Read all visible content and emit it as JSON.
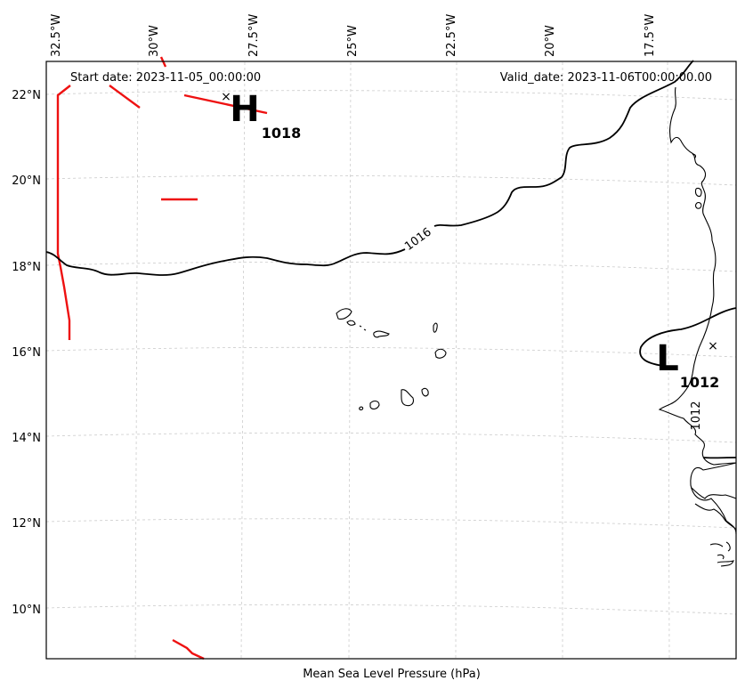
{
  "header": {
    "start_date": "Start date: 2023-11-05_00:00:00",
    "valid_date": "Valid_date: 2023-11-06T00:00:00.00"
  },
  "footer": {
    "caption": "Mean Sea Level Pressure (hPa)"
  },
  "longitude_labels": [
    "32.5°W",
    "30°W",
    "27.5°W",
    "25°W",
    "22.5°W",
    "20°W",
    "17.5°W"
  ],
  "latitude_labels": [
    "22°N",
    "20°N",
    "18°N",
    "16°N",
    "14°N",
    "12°N",
    "10°N"
  ],
  "pressure_centers": {
    "high": {
      "symbol": "H",
      "value": "1018"
    },
    "low": {
      "symbol": "L",
      "value": "1012"
    }
  },
  "isobar_labels": [
    "1016",
    "1012"
  ],
  "marker_symbol": "×",
  "colors": {
    "isobar": "#000000",
    "front": "#ee1111",
    "grid": "#cccccc",
    "frame": "#000000"
  }
}
